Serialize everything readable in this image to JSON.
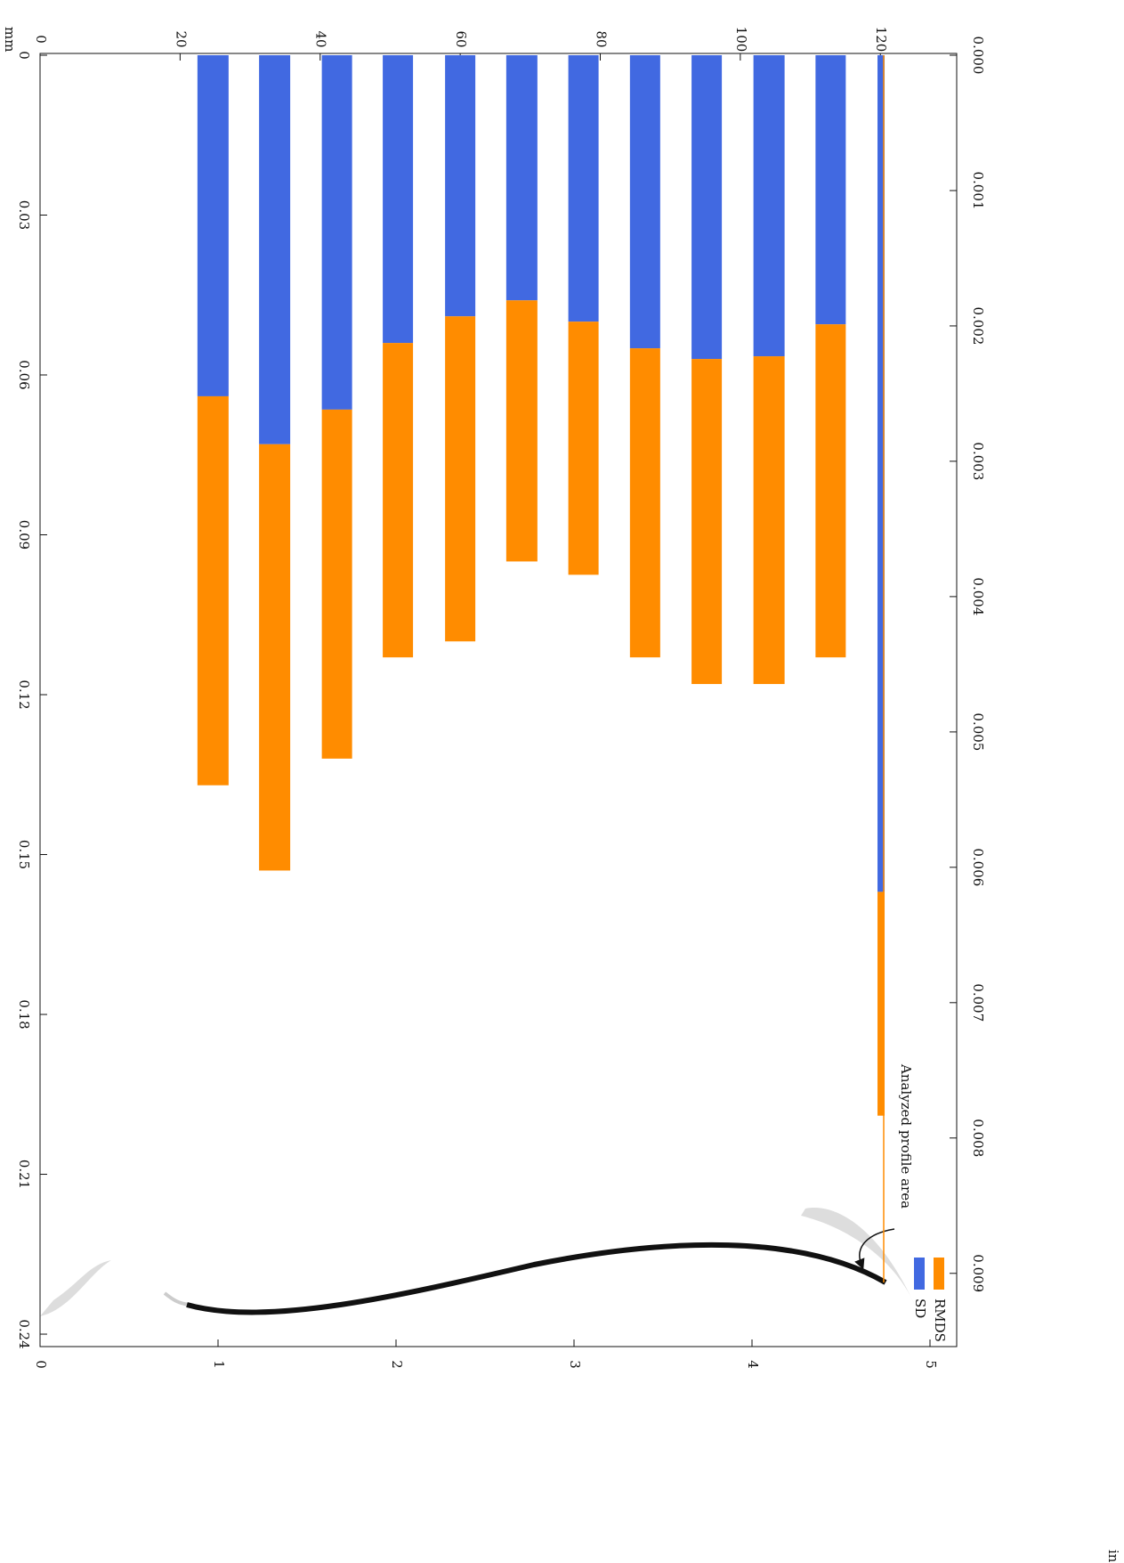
{
  "chart_data": {
    "type": "bar",
    "stacked": true,
    "x_unit": "mm",
    "x2_unit": "in",
    "x": [
      24.7,
      33.5,
      42.4,
      51.1,
      60.0,
      68.8,
      77.6,
      86.4,
      95.2,
      104.1,
      112.9,
      120.1
    ],
    "series": [
      {
        "name": "SD",
        "color": "#4169e1",
        "values": [
          0.064,
          0.073,
          0.0665,
          0.054,
          0.049,
          0.046,
          0.05,
          0.055,
          0.057,
          0.0565,
          0.0505,
          0.157
        ]
      },
      {
        "name": "RMDS",
        "color": "#ff8c00",
        "values": [
          0.073,
          0.08,
          0.0655,
          0.059,
          0.061,
          0.049,
          0.0475,
          0.058,
          0.061,
          0.0615,
          0.0625,
          0.042
        ]
      }
    ],
    "xlim": [
      0,
      130.9
    ],
    "xticks": [
      0,
      20,
      40,
      60,
      80,
      100,
      120
    ],
    "x2lim": [
      0,
      5.15
    ],
    "x2ticks": [
      0,
      1,
      2,
      3,
      4,
      5
    ],
    "ylim": [
      0,
      0.242
    ],
    "yticks": [
      0,
      0.03,
      0.06,
      0.09,
      0.12,
      0.15,
      0.18,
      0.21,
      0.24
    ],
    "y2lim": [
      0,
      0.009528
    ],
    "y2ticks": [
      {
        "value": 0,
        "label": "0.000"
      },
      {
        "value": 0.001,
        "label": "0.001"
      },
      {
        "value": 0.002,
        "label": "0.002"
      },
      {
        "value": 0.003,
        "label": "0.003"
      },
      {
        "value": 0.004,
        "label": "0.004"
      },
      {
        "value": 0.005,
        "label": "0.005"
      },
      {
        "value": 0.006,
        "label": "0.006"
      },
      {
        "value": 0.007,
        "label": "0.007"
      },
      {
        "value": 0.008,
        "label": "0.008"
      },
      {
        "value": 0.009,
        "label": "0.009"
      }
    ],
    "annotation": "Analyzed profile area",
    "legend": "bottom-right"
  }
}
